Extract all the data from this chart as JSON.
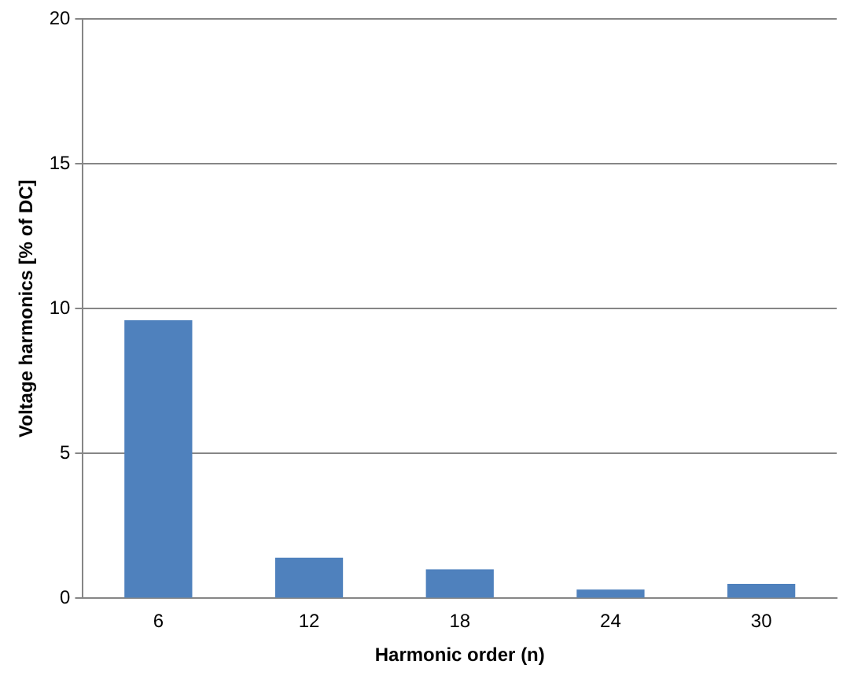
{
  "chart_data": {
    "type": "bar",
    "xlabel": "Harmonic order (n)",
    "ylabel": "Voltage harmonics [% of DC]",
    "categories": [
      "6",
      "12",
      "18",
      "24",
      "30"
    ],
    "values": [
      9.6,
      1.4,
      1.0,
      0.3,
      0.5
    ],
    "color": "#4f81bd",
    "ylim": [
      0,
      20
    ],
    "yticks": [
      0,
      5,
      10,
      15,
      20
    ],
    "grid": "y",
    "legend": false
  }
}
